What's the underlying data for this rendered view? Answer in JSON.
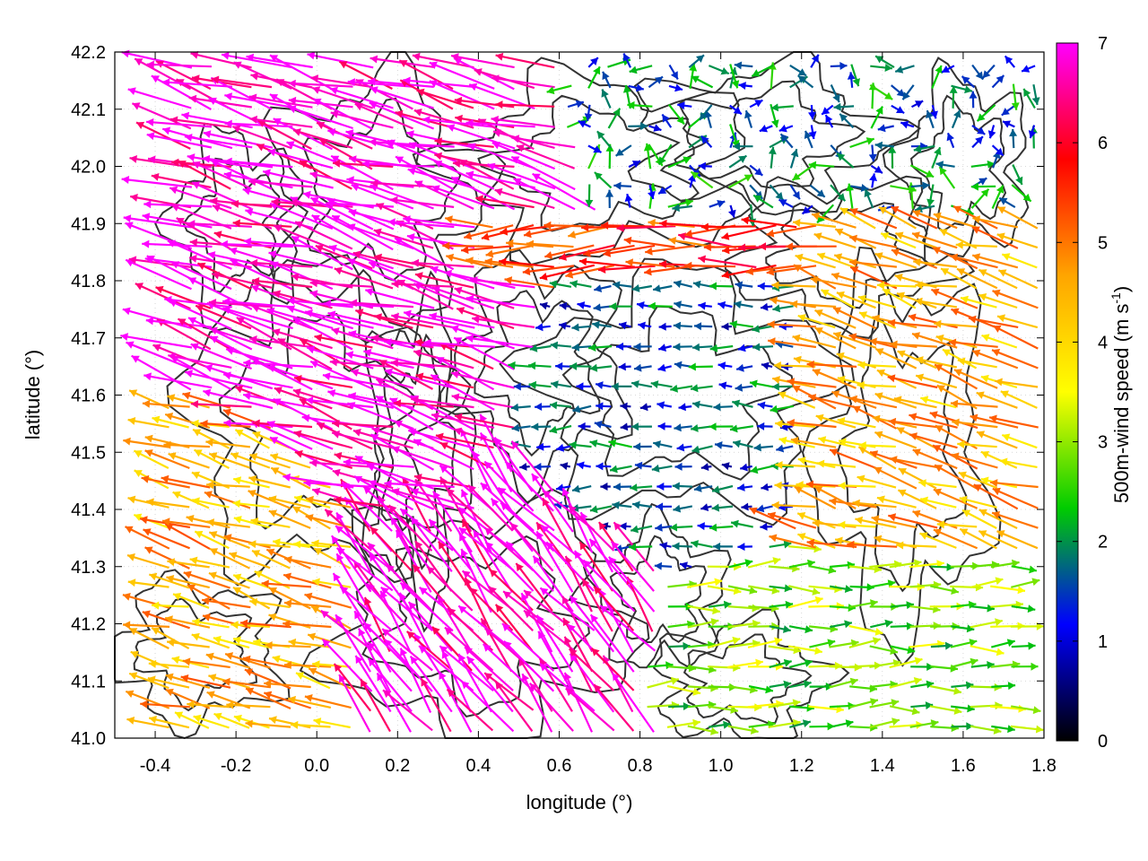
{
  "chart_data": {
    "type": "vector-field",
    "xlabel": "longitude (°)",
    "ylabel": "latitude (°)",
    "xlim": [
      -0.5,
      1.8
    ],
    "ylim": [
      41.0,
      42.2
    ],
    "xticks": [
      "-0.4",
      "-0.2",
      "0.0",
      "0.2",
      "0.4",
      "0.6",
      "0.8",
      "1.0",
      "1.2",
      "1.4",
      "1.6",
      "1.8"
    ],
    "yticks": [
      "41.0",
      "41.1",
      "41.2",
      "41.3",
      "41.4",
      "41.5",
      "41.6",
      "41.7",
      "41.8",
      "41.9",
      "42.0",
      "42.1",
      "42.2"
    ],
    "grid": true,
    "colorbar": {
      "label": "500m-wind speed (m s",
      "label_sup": "-1",
      "label_end": ")",
      "range": [
        0,
        7
      ],
      "ticks": [
        "0",
        "1",
        "2",
        "3",
        "4",
        "5",
        "6",
        "7"
      ],
      "colors": [
        "#000000",
        "#0000ff",
        "#00cc00",
        "#ffff00",
        "#ffa500",
        "#ff0000",
        "#ff00ff"
      ]
    },
    "wind_regions": [
      {
        "region": "northwest",
        "lon": [
          -0.5,
          0.4
        ],
        "lat": [
          41.4,
          42.2
        ],
        "speed": 7,
        "direction": "from east-southeast"
      },
      {
        "region": "southwest",
        "lon": [
          -0.5,
          0.1
        ],
        "lat": [
          41.0,
          41.7
        ],
        "speed": 4.5,
        "direction": "from east-southeast"
      },
      {
        "region": "central-south",
        "lon": [
          0.1,
          0.7
        ],
        "lat": [
          41.0,
          41.4
        ],
        "speed": 7,
        "direction": "from southeast"
      },
      {
        "region": "center",
        "lon": [
          0.6,
          1.2
        ],
        "lat": [
          41.4,
          41.8
        ],
        "speed": 1.5,
        "direction": "from east"
      },
      {
        "region": "north-center",
        "lon": [
          0.4,
          1.3
        ],
        "lat": [
          41.8,
          41.9
        ],
        "speed": 5.5,
        "direction": "from east"
      },
      {
        "region": "northeast",
        "lon": [
          0.9,
          1.8
        ],
        "lat": [
          41.9,
          42.2
        ],
        "speed": 1.8,
        "direction": "variable"
      },
      {
        "region": "east",
        "lon": [
          1.2,
          1.8
        ],
        "lat": [
          41.3,
          41.9
        ],
        "speed": 4.5,
        "direction": "from east-southeast"
      },
      {
        "region": "southeast",
        "lon": [
          1.0,
          1.8
        ],
        "lat": [
          41.0,
          41.3
        ],
        "speed": 2.8,
        "direction": "from west"
      }
    ]
  }
}
